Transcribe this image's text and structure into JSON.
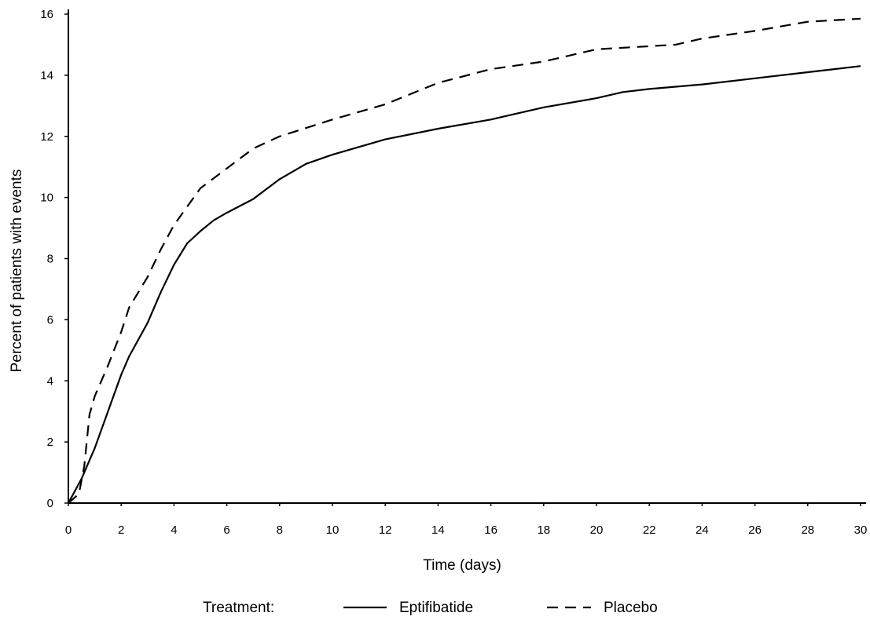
{
  "chart_data": {
    "type": "line",
    "title": "",
    "xlabel": "Time (days)",
    "ylabel": "Percent of patients with events",
    "xlim": [
      0,
      30
    ],
    "ylim": [
      0,
      16
    ],
    "x_ticks": [
      0,
      2,
      4,
      6,
      8,
      10,
      12,
      14,
      16,
      18,
      20,
      22,
      24,
      26,
      28,
      30
    ],
    "y_ticks": [
      0,
      2,
      4,
      6,
      8,
      10,
      12,
      14,
      16
    ],
    "grid": false,
    "legend_title": "Treatment:",
    "legend_position": "bottom",
    "series": [
      {
        "name": "Eptifibatide",
        "line_style": "solid",
        "color": "#000000",
        "points": [
          [
            0,
            0
          ],
          [
            0.5,
            0.8
          ],
          [
            1,
            1.8
          ],
          [
            1.5,
            3.0
          ],
          [
            2,
            4.2
          ],
          [
            2.3,
            4.8
          ],
          [
            3,
            5.9
          ],
          [
            3.5,
            6.9
          ],
          [
            4,
            7.8
          ],
          [
            4.5,
            8.5
          ],
          [
            5,
            8.9
          ],
          [
            5.5,
            9.25
          ],
          [
            6,
            9.5
          ],
          [
            7,
            9.95
          ],
          [
            8,
            10.6
          ],
          [
            9,
            11.1
          ],
          [
            10,
            11.4
          ],
          [
            12,
            11.9
          ],
          [
            14,
            12.25
          ],
          [
            16,
            12.55
          ],
          [
            18,
            12.95
          ],
          [
            20,
            13.25
          ],
          [
            21,
            13.45
          ],
          [
            22,
            13.55
          ],
          [
            24,
            13.7
          ],
          [
            26,
            13.9
          ],
          [
            28,
            14.1
          ],
          [
            29,
            14.2
          ],
          [
            30,
            14.3
          ]
        ]
      },
      {
        "name": "Placebo",
        "line_style": "dashed",
        "color": "#000000",
        "points": [
          [
            0,
            0
          ],
          [
            0.4,
            0.3
          ],
          [
            0.6,
            1.2
          ],
          [
            0.8,
            2.9
          ],
          [
            1,
            3.5
          ],
          [
            1.5,
            4.5
          ],
          [
            2,
            5.6
          ],
          [
            2.3,
            6.4
          ],
          [
            3,
            7.4
          ],
          [
            3.5,
            8.3
          ],
          [
            4,
            9.1
          ],
          [
            4.5,
            9.7
          ],
          [
            5,
            10.3
          ],
          [
            6,
            10.95
          ],
          [
            7,
            11.6
          ],
          [
            8,
            12.0
          ],
          [
            10,
            12.55
          ],
          [
            12,
            13.05
          ],
          [
            14,
            13.75
          ],
          [
            16,
            14.2
          ],
          [
            18,
            14.45
          ],
          [
            20,
            14.85
          ],
          [
            22,
            14.95
          ],
          [
            23,
            15.0
          ],
          [
            24,
            15.2
          ],
          [
            26,
            15.45
          ],
          [
            28,
            15.75
          ],
          [
            30,
            15.85
          ]
        ]
      }
    ]
  }
}
